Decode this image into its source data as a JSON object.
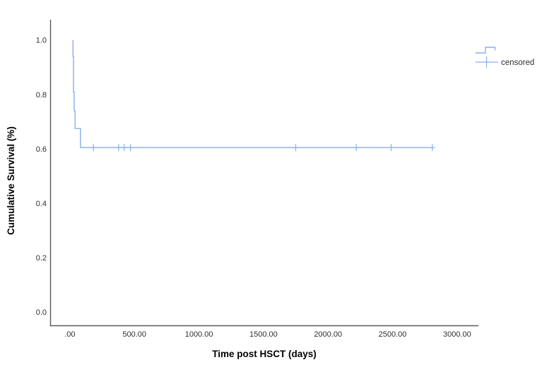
{
  "chart_data": {
    "type": "line",
    "subtype": "kaplan-meier-step",
    "title": "",
    "xlabel": "Time post HSCT (days)",
    "ylabel": "Cumulative Survival (%)",
    "xlim": [
      -150,
      3165
    ],
    "ylim": [
      -0.05,
      1.075
    ],
    "grid": false,
    "x_ticks": [
      {
        "v": 0,
        "label": ".00"
      },
      {
        "v": 500,
        "label": "500.00"
      },
      {
        "v": 1000,
        "label": "1000.00"
      },
      {
        "v": 1500,
        "label": "1500.00"
      },
      {
        "v": 2000,
        "label": "2000.00"
      },
      {
        "v": 2500,
        "label": "2500.00"
      },
      {
        "v": 3000,
        "label": "3000.00"
      }
    ],
    "y_ticks": [
      {
        "v": 0.0,
        "label": "0.0"
      },
      {
        "v": 0.2,
        "label": "0.2"
      },
      {
        "v": 0.4,
        "label": "0.4"
      },
      {
        "v": 0.6,
        "label": "0.6"
      },
      {
        "v": 0.8,
        "label": "0.8"
      },
      {
        "v": 1.0,
        "label": "1.0"
      }
    ],
    "series": [
      {
        "name": "cumulative-survival",
        "path_points": [
          [
            24,
            1.0
          ],
          [
            24,
            0.94
          ],
          [
            28,
            0.94
          ],
          [
            28,
            0.81
          ],
          [
            33,
            0.81
          ],
          [
            33,
            0.74
          ],
          [
            40,
            0.74
          ],
          [
            40,
            0.675
          ],
          [
            82,
            0.675
          ],
          [
            82,
            0.605
          ],
          [
            2808,
            0.605
          ]
        ]
      }
    ],
    "censored_points": [
      [
        183,
        0.605
      ],
      [
        377,
        0.605
      ],
      [
        420,
        0.605
      ],
      [
        469,
        0.605
      ],
      [
        1750,
        0.605
      ],
      [
        2219,
        0.605
      ],
      [
        2489,
        0.605
      ],
      [
        2808,
        0.605
      ]
    ],
    "legend": {
      "position": "top-right-outside",
      "items": [
        {
          "glyph": "step-line",
          "label": ""
        },
        {
          "glyph": "plus-marker",
          "label": "censored"
        }
      ]
    },
    "colors": {
      "curve": "#88afe8",
      "axis": "#5c5c5c",
      "tick_text": "#2e2e2e",
      "title_text": "#000000",
      "background": "#ffffff"
    }
  }
}
